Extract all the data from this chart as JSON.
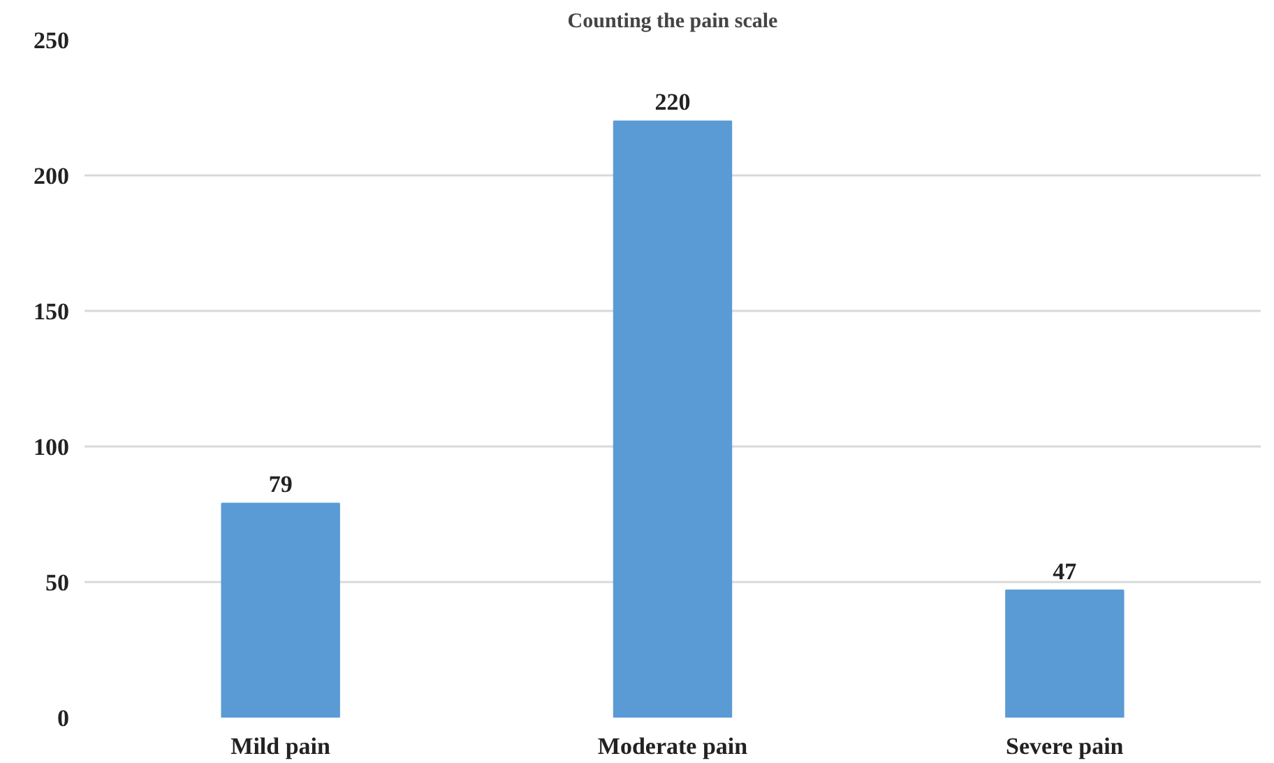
{
  "chart_data": {
    "type": "bar",
    "title": "Counting the pain scale",
    "categories": [
      "Mild pain",
      "Moderate pain",
      "Severe pain"
    ],
    "values": [
      79,
      220,
      47
    ],
    "color": "#5b9bd5",
    "ylim": [
      0,
      250
    ],
    "yticks": [
      0,
      50,
      100,
      150,
      200,
      250
    ],
    "grid": "y",
    "data_labels": true
  }
}
